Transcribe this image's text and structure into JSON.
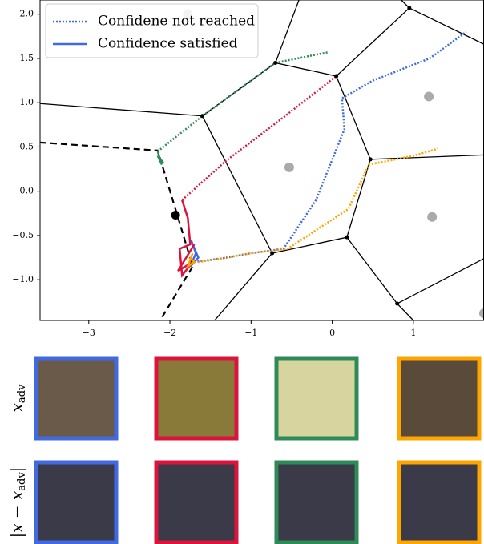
{
  "chart_data": {
    "type": "line",
    "xlim": [
      -3.6,
      1.87
    ],
    "ylim": [
      -1.46,
      2.16
    ],
    "xticks": [
      {
        "value": -3,
        "label": "−3"
      },
      {
        "value": -2,
        "label": "−2"
      },
      {
        "value": -1,
        "label": "−1"
      },
      0,
      1
    ],
    "yticks": [
      {
        "value": -1.0,
        "label": "−1.0"
      },
      {
        "value": -0.5,
        "label": "−0.5"
      },
      {
        "value": 0.0,
        "label": "0.0"
      },
      0.5,
      {
        "value": 1.0,
        "label": "1.0"
      },
      1.5,
      {
        "value": 2.0,
        "label": "2.0"
      }
    ],
    "legend": {
      "corner": "upper left",
      "entries": [
        {
          "label": "Confidene not reached",
          "style": "dotted",
          "color": "#4169e1"
        },
        {
          "label": "Confidence satisfied",
          "style": "solid",
          "color": "#4169e1"
        }
      ]
    },
    "edges": [
      {
        "x": [
          -3.6,
          -1.6,
          -0.7,
          0.05,
          0.95,
          0.85
        ],
        "y": [
          0.99,
          0.85,
          1.45,
          1.3,
          2.07,
          2.16
        ]
      },
      {
        "x": [
          -0.7,
          -0.41
        ],
        "y": [
          1.45,
          2.16
        ]
      },
      {
        "x": [
          0.95,
          1.87
        ],
        "y": [
          2.07,
          1.66
        ]
      },
      {
        "x": [
          0.05,
          0.47,
          1.87
        ],
        "y": [
          1.3,
          0.36,
          0.41
        ]
      },
      {
        "x": [
          0.47,
          0.18,
          -0.74,
          -1.6
        ],
        "y": [
          0.36,
          -0.52,
          -0.7,
          0.85
        ]
      },
      {
        "x": [
          0.18,
          0.8,
          1.87
        ],
        "y": [
          -0.52,
          -1.27,
          -0.76
        ]
      },
      {
        "x": [
          0.8,
          1.0
        ],
        "y": [
          -1.27,
          -1.46
        ]
      },
      {
        "x": [
          -0.74,
          -1.45
        ],
        "y": [
          -0.7,
          -1.46
        ]
      }
    ],
    "boundary": {
      "style": "dashed",
      "x": [
        -3.6,
        -2.15,
        -1.85,
        -1.72,
        -2.12
      ],
      "y": [
        0.55,
        0.46,
        -0.45,
        -0.85,
        -1.46
      ]
    },
    "vertices": {
      "x": [
        -0.7,
        -1.6,
        0.05,
        0.95,
        0.47,
        0.18,
        -0.74,
        0.8
      ],
      "y": [
        1.45,
        0.85,
        1.3,
        2.07,
        0.36,
        -0.52,
        -0.7,
        -1.27
      ]
    },
    "centers": {
      "color": "#aaaaaa",
      "x": [
        -1.78,
        1.19,
        -0.53,
        1.23,
        1.87
      ],
      "y": [
        2.0,
        1.07,
        0.27,
        -0.29,
        -1.38
      ]
    },
    "origin": {
      "color": "#000000",
      "x": -1.93,
      "y": -0.27
    },
    "series": [
      {
        "color": "#4169e1",
        "style": "dotted",
        "x": [
          -1.7,
          -1.3,
          -1.0,
          -0.6,
          -0.2,
          0.15,
          0.12,
          0.5,
          1.2,
          1.65
        ],
        "y": [
          -0.8,
          -0.75,
          -0.7,
          -0.65,
          -0.1,
          0.7,
          1.05,
          1.25,
          1.5,
          1.8
        ]
      },
      {
        "color": "#4169e1",
        "style": "solid",
        "x": [
          -1.72,
          -1.65,
          -1.75,
          -1.68,
          -1.74
        ],
        "y": [
          -0.6,
          -0.75,
          -0.85,
          -0.7,
          -0.55
        ]
      },
      {
        "color": "#dc143c",
        "style": "dotted",
        "x": [
          -1.85,
          -1.3,
          -0.65,
          0.05
        ],
        "y": [
          -0.1,
          0.35,
          0.8,
          1.3
        ]
      },
      {
        "color": "#dc143c",
        "style": "solid",
        "x": [
          -1.85,
          -1.78,
          -1.75,
          -1.88,
          -1.85,
          -1.72,
          -1.9,
          -1.7
        ],
        "y": [
          -0.1,
          -0.3,
          -0.6,
          -0.65,
          -0.95,
          -0.8,
          -0.9,
          -0.6
        ]
      },
      {
        "color": "#2e8b57",
        "style": "dotted",
        "x": [
          -2.15,
          -1.6,
          -0.7,
          -0.05
        ],
        "y": [
          0.45,
          0.85,
          1.45,
          1.57
        ]
      },
      {
        "color": "#2e8b57",
        "style": "solid",
        "x": [
          -2.15,
          -2.12,
          -2.1,
          -2.15,
          -2.08
        ],
        "y": [
          0.45,
          0.35,
          0.3,
          0.4,
          0.32
        ]
      },
      {
        "color": "#ffa500",
        "style": "dotted",
        "x": [
          -1.65,
          -1.3,
          -1.0,
          -0.55,
          0.2,
          0.45,
          1.0,
          1.3
        ],
        "y": [
          -0.8,
          -0.75,
          -0.7,
          -0.65,
          -0.2,
          0.3,
          0.4,
          0.48
        ]
      },
      {
        "color": "#ffa500",
        "style": "solid",
        "x": [
          -1.72,
          -1.78,
          -1.7,
          -1.76
        ],
        "y": [
          -0.7,
          -0.85,
          -0.8,
          -0.75
        ]
      }
    ]
  },
  "image_grid": {
    "row_labels": [
      {
        "base": "x",
        "sub": "adv"
      },
      {
        "prefix": "|x − x",
        "sub": "adv",
        "suffix": "|"
      }
    ],
    "frame_colors": [
      "#4169e1",
      "#dc143c",
      "#2e8b57",
      "#ffa500"
    ]
  }
}
